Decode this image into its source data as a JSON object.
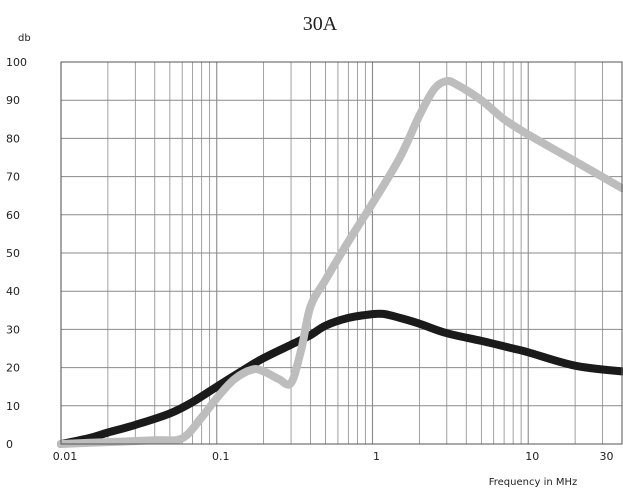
{
  "chart_data": {
    "type": "line",
    "title": "30A",
    "ylabel": "db",
    "xlabel": "Frequency in  MHz",
    "x_scale": "log",
    "xlim": [
      0.01,
      40
    ],
    "ylim": [
      0,
      100
    ],
    "grid": true,
    "y_ticks": [
      "0",
      "10",
      "20",
      "30",
      "40",
      "50",
      "60",
      "70",
      "80",
      "90",
      "100"
    ],
    "x_ticks": [
      {
        "value": 0.01,
        "label": "0.01"
      },
      {
        "value": 0.1,
        "label": "0.1"
      },
      {
        "value": 1,
        "label": "1"
      },
      {
        "value": 10,
        "label": "10"
      },
      {
        "value": 30,
        "label": "30"
      }
    ],
    "series": [
      {
        "color": "#1a1a1a",
        "points": [
          [
            0.01,
            0
          ],
          [
            0.015,
            1.5
          ],
          [
            0.02,
            3
          ],
          [
            0.03,
            5
          ],
          [
            0.05,
            8
          ],
          [
            0.07,
            11
          ],
          [
            0.1,
            15
          ],
          [
            0.15,
            19.5
          ],
          [
            0.2,
            22.5
          ],
          [
            0.3,
            26
          ],
          [
            0.4,
            28.5
          ],
          [
            0.5,
            31
          ],
          [
            0.7,
            33
          ],
          [
            1.0,
            34
          ],
          [
            1.2,
            34
          ],
          [
            1.5,
            33
          ],
          [
            2,
            31.5
          ],
          [
            3,
            29
          ],
          [
            5,
            27
          ],
          [
            8,
            25
          ],
          [
            10,
            24
          ],
          [
            20,
            20.5
          ],
          [
            40,
            19
          ]
        ]
      },
      {
        "color": "#bdbdbd",
        "points": [
          [
            0.01,
            0
          ],
          [
            0.02,
            0.5
          ],
          [
            0.04,
            1
          ],
          [
            0.06,
            1.5
          ],
          [
            0.08,
            7
          ],
          [
            0.1,
            12
          ],
          [
            0.13,
            17
          ],
          [
            0.17,
            19.5
          ],
          [
            0.2,
            19
          ],
          [
            0.25,
            17
          ],
          [
            0.3,
            16
          ],
          [
            0.35,
            25
          ],
          [
            0.4,
            36
          ],
          [
            0.5,
            43
          ],
          [
            0.7,
            53
          ],
          [
            1.0,
            63
          ],
          [
            1.5,
            75
          ],
          [
            2,
            86
          ],
          [
            2.5,
            93
          ],
          [
            3,
            95
          ],
          [
            3.5,
            94
          ],
          [
            5,
            90
          ],
          [
            7,
            85
          ],
          [
            10,
            81
          ],
          [
            20,
            74
          ],
          [
            40,
            67
          ]
        ]
      }
    ]
  }
}
